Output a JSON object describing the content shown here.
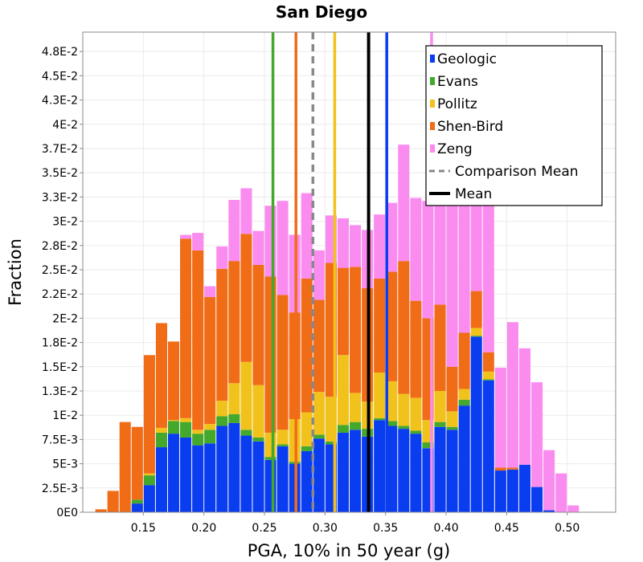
{
  "chart_data": {
    "type": "bar",
    "stacked": true,
    "title": "San Diego",
    "xlabel": "PGA, 10% in 50 year (g)",
    "ylabel": "Fraction",
    "xlim": [
      0.1,
      0.54
    ],
    "ylim": [
      0,
      0.0495
    ],
    "x_ticks": [
      "0.15",
      "0.20",
      "0.25",
      "0.30",
      "0.35",
      "0.40",
      "0.45",
      "0.50"
    ],
    "x_tick_values": [
      0.15,
      0.2,
      0.25,
      0.3,
      0.35,
      0.4,
      0.45,
      0.5
    ],
    "y_ticks": [
      "0E0",
      "2.5E-3",
      "5E-3",
      "7.5E-3",
      "1E-2",
      "1.3E-2",
      "1.5E-2",
      "1.8E-2",
      "2E-2",
      "2.2E-2",
      "2.5E-2",
      "2.8E-2",
      "3E-2",
      "3.3E-2",
      "3.5E-2",
      "3.7E-2",
      "4E-2",
      "4.3E-2",
      "4.5E-2",
      "4.8E-2"
    ],
    "y_tick_values": [
      0,
      0.0025,
      0.005,
      0.0075,
      0.01,
      0.0125,
      0.015,
      0.0175,
      0.02,
      0.0225,
      0.025,
      0.0275,
      0.03,
      0.0325,
      0.035,
      0.0375,
      0.04,
      0.0425,
      0.045,
      0.0475
    ],
    "grid": true,
    "legend_position": "top-right",
    "bin_width": 0.01,
    "series": [
      {
        "name": "Geologic",
        "color": "#0a3cf0",
        "values": [
          0,
          0,
          0,
          0.0009,
          0.0028,
          0.0067,
          0.0081,
          0.0077,
          0.0069,
          0.0071,
          0.0089,
          0.0092,
          0.0079,
          0.0073,
          0.0054,
          0.0068,
          0.005,
          0.0063,
          0.0076,
          0.007,
          0.0082,
          0.0085,
          0.0078,
          0.0095,
          0.0089,
          0.0086,
          0.0081,
          0.0066,
          0.0088,
          0.0085,
          0.011,
          0.0181,
          0.0136,
          0.0043,
          0.0044,
          0.0049,
          0.0026,
          0.0002,
          0,
          0
        ],
        "x": [
          0.115,
          0.125,
          0.135,
          0.145,
          0.155,
          0.165,
          0.175,
          0.185,
          0.195,
          0.205,
          0.215,
          0.225,
          0.235,
          0.245,
          0.255,
          0.265,
          0.275,
          0.285,
          0.295,
          0.305,
          0.315,
          0.325,
          0.335,
          0.345,
          0.355,
          0.365,
          0.375,
          0.385,
          0.395,
          0.405,
          0.415,
          0.425,
          0.435,
          0.445,
          0.455,
          0.465,
          0.475,
          0.485,
          0.495,
          0.505
        ]
      },
      {
        "name": "Evans",
        "color": "#44a82c",
        "values": [
          0,
          0,
          0,
          0.0004,
          0.001,
          0.0015,
          0.0013,
          0.0016,
          0.0012,
          0.0014,
          0.001,
          0.0009,
          0.0006,
          0.0004,
          0.0003,
          0.0002,
          0.0002,
          0.0005,
          0.0004,
          0.0003,
          0.0008,
          0.0008,
          0.0008,
          0.0002,
          0.0005,
          0.0003,
          0.0003,
          0.0006,
          0.0005,
          0.0003,
          0.0006,
          0.0001,
          0.0001,
          0,
          0,
          0,
          0,
          0,
          0,
          0
        ]
      },
      {
        "name": "Pollitz",
        "color": "#f2c21c",
        "values": [
          0,
          0,
          0,
          0,
          0.0002,
          0.0005,
          0.0001,
          0.0004,
          0.0004,
          0.0006,
          0.0016,
          0.0032,
          0.007,
          0.0054,
          0.0025,
          0.0015,
          0.0044,
          0.0035,
          0.0044,
          0.0046,
          0.0072,
          0.003,
          0.0028,
          0.0047,
          0.0041,
          0.0033,
          0.0034,
          0.0023,
          0.0032,
          0.0016,
          0.0011,
          0.0008,
          0.0008,
          0,
          0,
          0,
          0,
          0,
          0,
          0
        ]
      },
      {
        "name": "Shen-Bird",
        "color": "#f06c17",
        "values": [
          0.0003,
          0.0022,
          0.0093,
          0.0075,
          0.0122,
          0.0108,
          0.0081,
          0.0185,
          0.0185,
          0.0131,
          0.0136,
          0.0126,
          0.0132,
          0.0124,
          0.0161,
          0.0139,
          0.011,
          0.0138,
          0.0095,
          0.0138,
          0.009,
          0.013,
          0.0117,
          0.0097,
          0.0113,
          0.0137,
          0.01,
          0.0105,
          0.0089,
          0.0046,
          0.0058,
          0.0038,
          0.002,
          0.0003,
          0.0002,
          0,
          0,
          0,
          0,
          0
        ]
      },
      {
        "name": "Zeng",
        "color": "#fa8cf0",
        "values": [
          0,
          0,
          0,
          0,
          0,
          0,
          0,
          0.0004,
          0.0018,
          0.0011,
          0.0023,
          0.0063,
          0.0047,
          0.0035,
          0.0073,
          0.0097,
          0.008,
          0.0088,
          0.0051,
          0.0049,
          0.0051,
          0.0043,
          0.006,
          0.0066,
          0.0071,
          0.012,
          0.0106,
          0.0121,
          0.012,
          0.0184,
          0.0157,
          0.0154,
          0.0164,
          0.0103,
          0.015,
          0.012,
          0.0108,
          0.0062,
          0.004,
          0.0007
        ]
      }
    ],
    "vertical_lines": [
      {
        "name": "Geologic",
        "x": 0.351,
        "color": "#0a3cf0",
        "style": "solid"
      },
      {
        "name": "Evans",
        "x": 0.257,
        "color": "#44a82c",
        "style": "solid"
      },
      {
        "name": "Pollitz",
        "x": 0.308,
        "color": "#f2c21c",
        "style": "solid"
      },
      {
        "name": "Shen-Bird",
        "x": 0.276,
        "color": "#f06c17",
        "style": "solid"
      },
      {
        "name": "Zeng",
        "x": 0.388,
        "color": "#fa8cf0",
        "style": "solid"
      },
      {
        "name": "Comparison Mean",
        "x": 0.29,
        "color": "#888888",
        "style": "dashed"
      },
      {
        "name": "Mean",
        "x": 0.336,
        "color": "#000000",
        "style": "solid"
      }
    ],
    "legend": [
      {
        "label": "Geologic",
        "color": "#0a3cf0",
        "kind": "box"
      },
      {
        "label": "Evans",
        "color": "#44a82c",
        "kind": "box"
      },
      {
        "label": "Pollitz",
        "color": "#f2c21c",
        "kind": "box"
      },
      {
        "label": "Shen-Bird",
        "color": "#f06c17",
        "kind": "box"
      },
      {
        "label": "Zeng",
        "color": "#fa8cf0",
        "kind": "box"
      },
      {
        "label": "Comparison Mean",
        "color": "#888888",
        "kind": "dashed"
      },
      {
        "label": "Mean",
        "color": "#000000",
        "kind": "line"
      }
    ]
  }
}
